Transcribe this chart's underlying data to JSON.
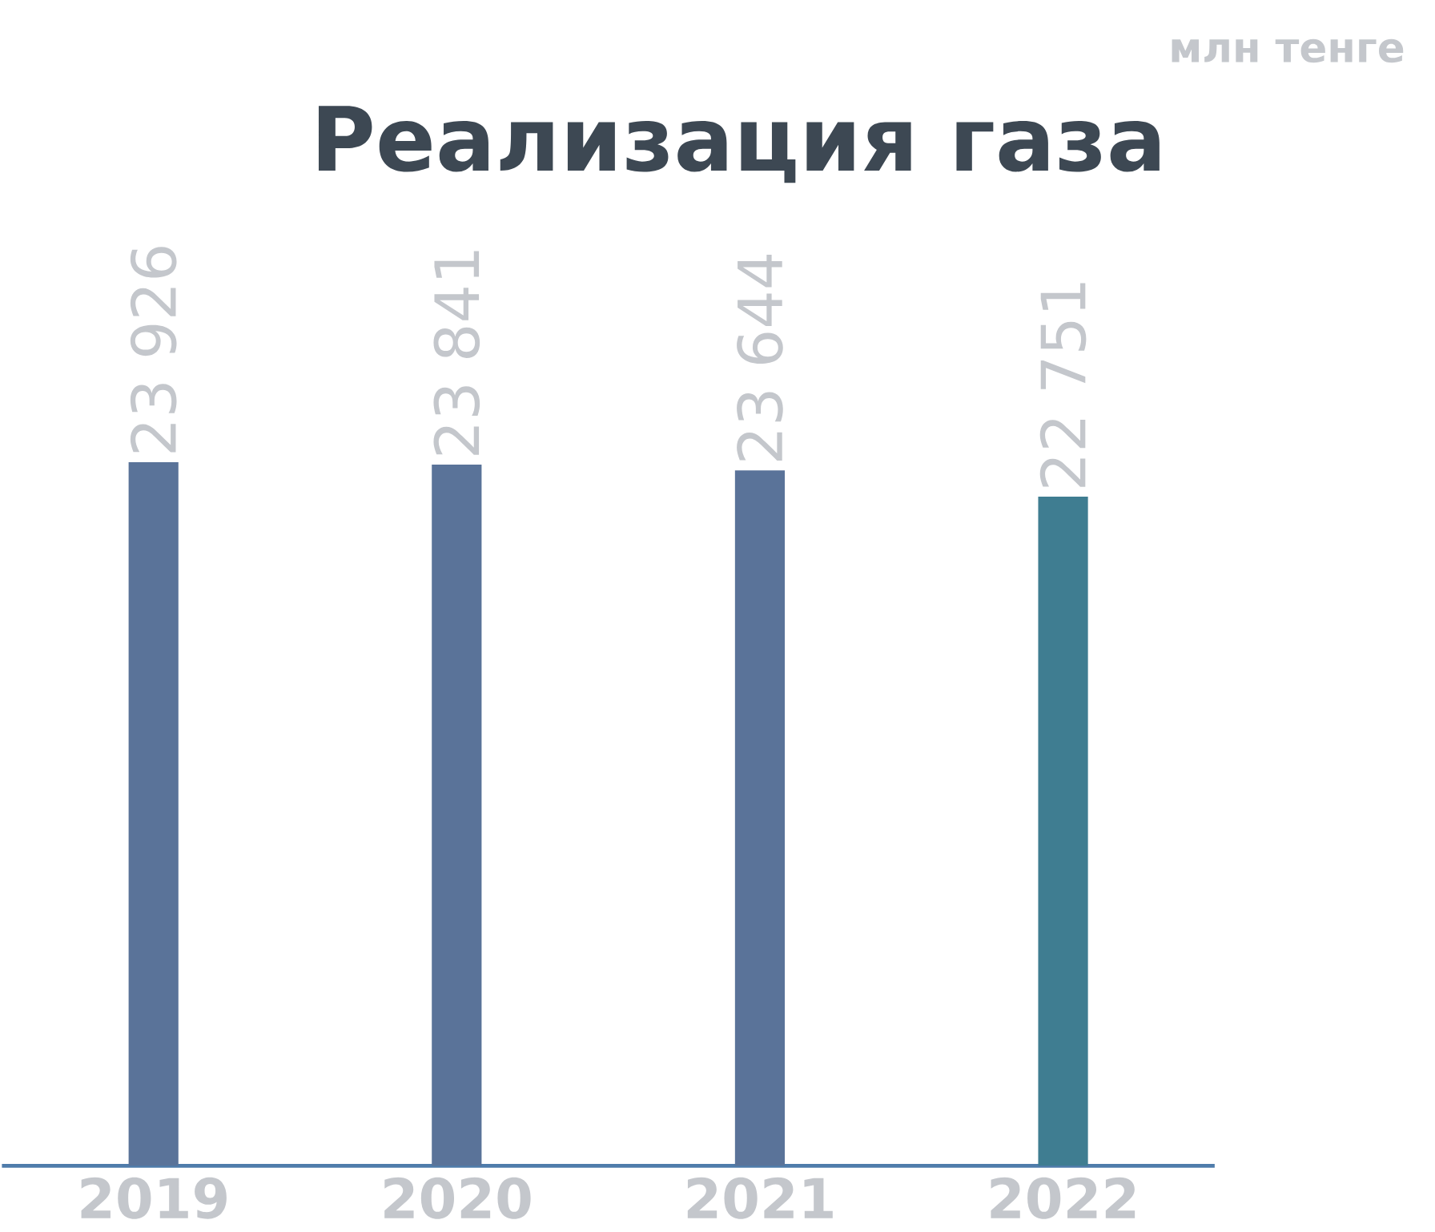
{
  "chart_data": {
    "type": "bar",
    "title": "Реализация газа",
    "annotations": [
      "млн тенге"
    ],
    "categories": [
      "2019",
      "2020",
      "2021",
      "2022"
    ],
    "values": [
      23926,
      23841,
      23644,
      22751
    ],
    "value_labels": [
      "23 926",
      "23 841",
      "23 644",
      "22 751"
    ],
    "colors": [
      "#5a7399",
      "#5a7399",
      "#5a7399",
      "#3f7d91"
    ]
  }
}
